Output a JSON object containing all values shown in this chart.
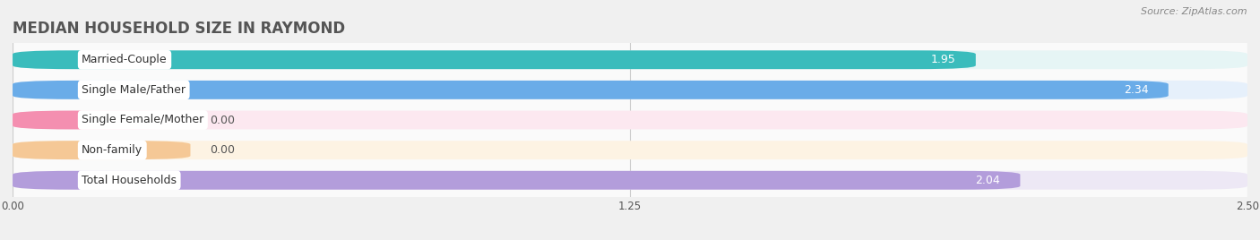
{
  "title": "MEDIAN HOUSEHOLD SIZE IN RAYMOND",
  "source": "Source: ZipAtlas.com",
  "categories": [
    "Married-Couple",
    "Single Male/Father",
    "Single Female/Mother",
    "Non-family",
    "Total Households"
  ],
  "values": [
    1.95,
    2.34,
    0.0,
    0.0,
    2.04
  ],
  "bar_colors": [
    "#3abcbc",
    "#6aace8",
    "#f48fb0",
    "#f5c896",
    "#b39ddb"
  ],
  "bar_bg_colors": [
    "#e6f5f5",
    "#e6f0fb",
    "#fce8f0",
    "#fdf3e3",
    "#ede8f5"
  ],
  "xlim_data": [
    0.0,
    2.5
  ],
  "xticks": [
    0.0,
    1.25,
    2.5
  ],
  "background_color": "#f0f0f0",
  "plot_bg_color": "#fafafa",
  "title_fontsize": 12,
  "label_fontsize": 9,
  "value_fontsize": 9,
  "bar_height": 0.62,
  "label_bg_color": "#ffffff",
  "gap_color": "#e0e0e0"
}
